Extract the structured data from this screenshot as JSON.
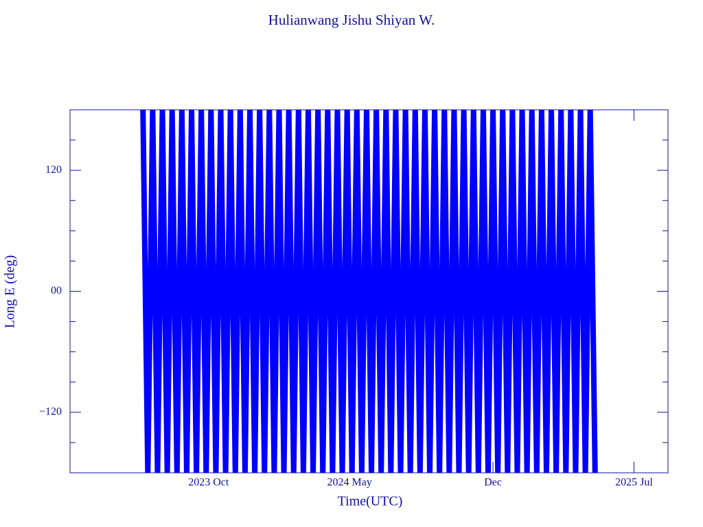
{
  "chart_data": {
    "type": "line",
    "title": "Hulianwang Jishu Shiyan W.",
    "x_label": "Time(UTC)",
    "y_label": "Long E (deg)",
    "xlim": [
      2023.18,
      2025.64
    ],
    "xticks": [
      {
        "value": 2023.75,
        "label": "2023 Oct"
      },
      {
        "value": 2024.33,
        "label": "2024 May"
      },
      {
        "value": 2024.92,
        "label": "Dec"
      },
      {
        "value": 2025.5,
        "label": "2025 Jul"
      }
    ],
    "ylim": [
      -180,
      180
    ],
    "yticks": [
      {
        "value": -120,
        "label": "−120"
      },
      {
        "value": 0,
        "label": "00"
      },
      120
    ],
    "yminorticks": [
      -150,
      -90,
      -60,
      -30,
      30,
      60,
      90,
      150
    ],
    "color": "#0000ff",
    "x": [
      2023.48,
      2023.5,
      2023.52,
      2023.54,
      2023.56,
      2023.58,
      2023.6,
      2023.62,
      2023.64,
      2023.66,
      2023.68,
      2023.7,
      2023.72,
      2023.74,
      2023.76,
      2023.78,
      2023.8,
      2023.82,
      2023.84,
      2023.86,
      2023.88,
      2023.9,
      2023.92,
      2023.94,
      2023.96,
      2023.98,
      2024.0,
      2024.02,
      2024.04,
      2024.06,
      2024.08,
      2024.1,
      2024.12,
      2024.14,
      2024.16,
      2024.18,
      2024.2,
      2024.22,
      2024.24,
      2024.26,
      2024.28,
      2024.3,
      2024.32,
      2024.34,
      2024.36,
      2024.38,
      2024.4,
      2024.42,
      2024.44,
      2024.46,
      2024.48,
      2024.5,
      2024.52,
      2024.54,
      2024.56,
      2024.58,
      2024.6,
      2024.62,
      2024.64,
      2024.66,
      2024.68,
      2024.7,
      2024.72,
      2024.74,
      2024.76,
      2024.78,
      2024.8,
      2024.82,
      2024.84,
      2024.86,
      2024.88,
      2024.9,
      2024.92,
      2024.94,
      2024.96,
      2024.98,
      2025.0,
      2025.02,
      2025.04,
      2025.06,
      2025.08,
      2025.1,
      2025.12,
      2025.14,
      2025.16,
      2025.18,
      2025.2,
      2025.22,
      2025.24,
      2025.26,
      2025.28,
      2025.3,
      2025.32,
      2025.34
    ],
    "values": [
      180,
      -180,
      180,
      -180,
      180,
      -180,
      180,
      -180,
      180,
      -180,
      180,
      -180,
      180,
      -180,
      180,
      -180,
      180,
      -180,
      180,
      -180,
      180,
      -180,
      180,
      -180,
      180,
      -180,
      180,
      -180,
      180,
      -180,
      180,
      -180,
      180,
      -180,
      180,
      -180,
      180,
      -180,
      180,
      -180,
      180,
      -180,
      180,
      -180,
      180,
      -180,
      180,
      -180,
      180,
      -180,
      180,
      -180,
      180,
      -180,
      180,
      -180,
      180,
      -180,
      180,
      -180,
      180,
      -180,
      180,
      -180,
      180,
      -180,
      180,
      -180,
      180,
      -180,
      180,
      -180,
      180,
      -180,
      180,
      -180,
      180,
      -180,
      180,
      -180,
      180,
      -180,
      180,
      -180,
      180,
      -180,
      180,
      -180,
      180,
      -180,
      180,
      -180,
      180,
      -180
    ]
  }
}
